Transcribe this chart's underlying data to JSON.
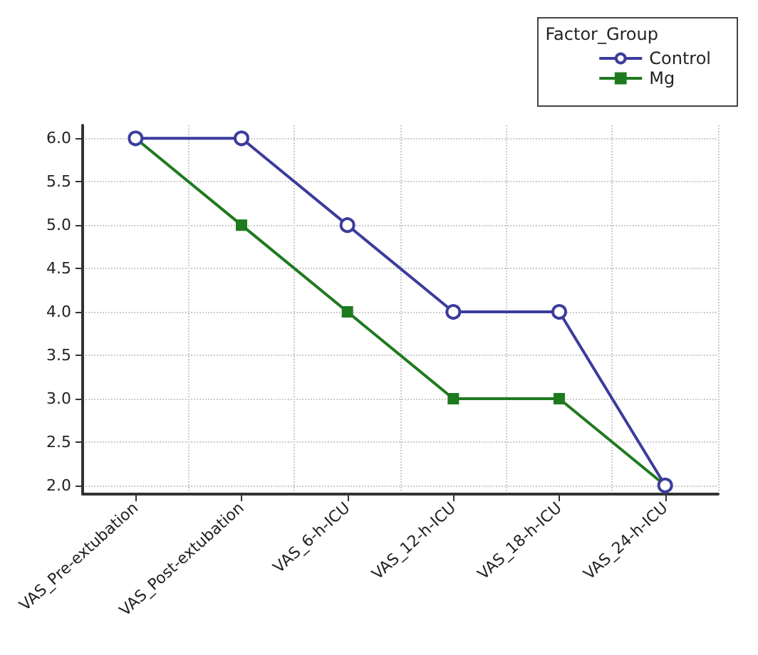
{
  "chart_data": {
    "type": "line",
    "legend_title": "Factor_Group",
    "categories": [
      "VAS_Pre-extubation",
      "VAS_Post-extubation",
      "VAS_6-h-ICU",
      "VAS_12-h-ICU",
      "VAS_18-h-ICU",
      "VAS_24-h-ICU"
    ],
    "series": [
      {
        "name": "Control",
        "color": "#3c3c9c",
        "values": [
          6,
          6,
          5,
          4,
          4,
          2
        ],
        "marker": "circle"
      },
      {
        "name": "Mg",
        "color": "#1e7a1e",
        "values": [
          6,
          5,
          4,
          3,
          3,
          2
        ],
        "marker": "square"
      }
    ],
    "ylim": [
      1.9,
      6.15
    ],
    "yticks": [
      {
        "value": 2,
        "label": "2.0"
      },
      {
        "value": 2.5,
        "label": "2.5"
      },
      {
        "value": 3,
        "label": "3.0"
      },
      {
        "value": 3.5,
        "label": "3.5"
      },
      {
        "value": 4,
        "label": "4.0"
      },
      {
        "value": 4.5,
        "label": "4.5"
      },
      {
        "value": 5,
        "label": "5.0"
      },
      {
        "value": 5.5,
        "label": "5.5"
      },
      {
        "value": 6,
        "label": "6.0"
      }
    ],
    "grid": true,
    "legend": "top right",
    "line_style": "solid"
  }
}
